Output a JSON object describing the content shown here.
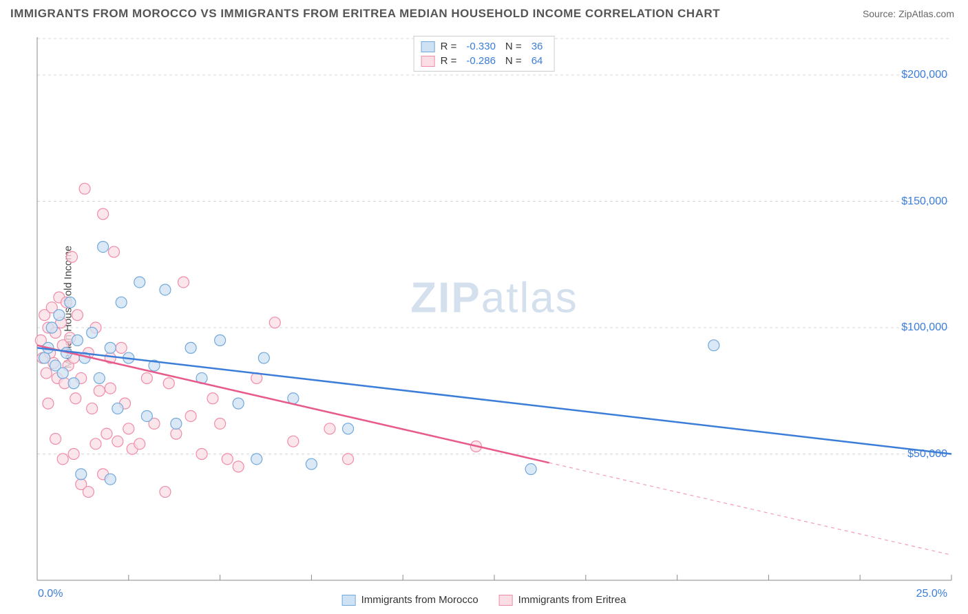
{
  "header": {
    "title": "IMMIGRANTS FROM MOROCCO VS IMMIGRANTS FROM ERITREA MEDIAN HOUSEHOLD INCOME CORRELATION CHART",
    "source_prefix": "Source: ",
    "source_name": "ZipAtlas.com"
  },
  "watermark": {
    "part1": "ZIP",
    "part2": "atlas"
  },
  "chart": {
    "type": "scatter",
    "ylabel": "Median Household Income",
    "xlim": [
      0,
      25
    ],
    "ylim": [
      0,
      215000
    ],
    "x_min_label": "0.0%",
    "x_max_label": "25.0%",
    "y_ticks": [
      50000,
      100000,
      150000,
      200000
    ],
    "y_tick_labels": [
      "$50,000",
      "$100,000",
      "$150,000",
      "$200,000"
    ],
    "x_ticks": [
      0,
      2.5,
      5,
      7.5,
      10,
      12.5,
      15,
      17.5,
      20,
      22.5,
      25
    ],
    "background_color": "#ffffff",
    "grid_color": "#d8d8d8",
    "axis_color": "#888888",
    "marker_radius": 8,
    "marker_stroke_width": 1.2,
    "line_width": 2.5,
    "series": {
      "morocco": {
        "label": "Immigrants from Morocco",
        "fill": "#cfe2f3",
        "stroke": "#6fa8dc",
        "line_color": "#3b7dd8",
        "R": "-0.330",
        "N": "36",
        "trend": {
          "x1": 0,
          "y1": 92000,
          "x2": 25,
          "y2": 50000,
          "solid_until_x": 25
        },
        "points": [
          [
            0.2,
            88000
          ],
          [
            0.3,
            92000
          ],
          [
            0.4,
            100000
          ],
          [
            0.5,
            85000
          ],
          [
            0.6,
            105000
          ],
          [
            0.7,
            82000
          ],
          [
            0.8,
            90000
          ],
          [
            0.9,
            110000
          ],
          [
            1.0,
            78000
          ],
          [
            1.1,
            95000
          ],
          [
            1.3,
            88000
          ],
          [
            1.5,
            98000
          ],
          [
            1.7,
            80000
          ],
          [
            1.8,
            132000
          ],
          [
            2.0,
            92000
          ],
          [
            2.2,
            68000
          ],
          [
            2.3,
            110000
          ],
          [
            2.5,
            88000
          ],
          [
            2.8,
            118000
          ],
          [
            3.0,
            65000
          ],
          [
            3.2,
            85000
          ],
          [
            3.5,
            115000
          ],
          [
            3.8,
            62000
          ],
          [
            4.2,
            92000
          ],
          [
            4.5,
            80000
          ],
          [
            5.0,
            95000
          ],
          [
            5.5,
            70000
          ],
          [
            6.0,
            48000
          ],
          [
            6.2,
            88000
          ],
          [
            7.0,
            72000
          ],
          [
            7.5,
            46000
          ],
          [
            8.5,
            60000
          ],
          [
            13.5,
            44000
          ],
          [
            18.5,
            93000
          ],
          [
            1.2,
            42000
          ],
          [
            2.0,
            40000
          ]
        ]
      },
      "eritrea": {
        "label": "Immigrants from Eritrea",
        "fill": "#fadde5",
        "stroke": "#f08ba6",
        "line_color": "#e85a8a",
        "R": "-0.286",
        "N": "64",
        "trend": {
          "x1": 0,
          "y1": 93000,
          "x2": 25,
          "y2": 10000,
          "solid_until_x": 14
        },
        "points": [
          [
            0.1,
            95000
          ],
          [
            0.15,
            88000
          ],
          [
            0.2,
            105000
          ],
          [
            0.25,
            82000
          ],
          [
            0.3,
            100000
          ],
          [
            0.35,
            90000
          ],
          [
            0.4,
            108000
          ],
          [
            0.45,
            86000
          ],
          [
            0.5,
            98000
          ],
          [
            0.55,
            80000
          ],
          [
            0.6,
            112000
          ],
          [
            0.65,
            102000
          ],
          [
            0.7,
            93000
          ],
          [
            0.75,
            78000
          ],
          [
            0.8,
            110000
          ],
          [
            0.85,
            85000
          ],
          [
            0.9,
            96000
          ],
          [
            0.95,
            128000
          ],
          [
            1.0,
            88000
          ],
          [
            1.05,
            72000
          ],
          [
            1.1,
            105000
          ],
          [
            1.2,
            80000
          ],
          [
            1.3,
            155000
          ],
          [
            1.4,
            90000
          ],
          [
            1.5,
            68000
          ],
          [
            1.6,
            100000
          ],
          [
            1.7,
            75000
          ],
          [
            1.8,
            145000
          ],
          [
            1.9,
            58000
          ],
          [
            2.0,
            88000
          ],
          [
            2.1,
            130000
          ],
          [
            2.2,
            55000
          ],
          [
            2.3,
            92000
          ],
          [
            2.4,
            70000
          ],
          [
            2.5,
            60000
          ],
          [
            2.6,
            52000
          ],
          [
            2.8,
            54000
          ],
          [
            3.0,
            80000
          ],
          [
            3.2,
            62000
          ],
          [
            3.5,
            35000
          ],
          [
            3.6,
            78000
          ],
          [
            3.8,
            58000
          ],
          [
            4.0,
            118000
          ],
          [
            4.2,
            65000
          ],
          [
            4.5,
            50000
          ],
          [
            4.8,
            72000
          ],
          [
            5.0,
            62000
          ],
          [
            5.2,
            48000
          ],
          [
            5.5,
            45000
          ],
          [
            6.0,
            80000
          ],
          [
            6.5,
            102000
          ],
          [
            7.0,
            55000
          ],
          [
            8.0,
            60000
          ],
          [
            8.5,
            48000
          ],
          [
            12.0,
            53000
          ],
          [
            0.5,
            56000
          ],
          [
            0.7,
            48000
          ],
          [
            1.0,
            50000
          ],
          [
            1.2,
            38000
          ],
          [
            1.4,
            35000
          ],
          [
            1.8,
            42000
          ],
          [
            1.6,
            54000
          ],
          [
            2.0,
            76000
          ],
          [
            0.3,
            70000
          ]
        ]
      }
    },
    "legend_stats_label_R": "R =",
    "legend_stats_label_N": "N ="
  }
}
